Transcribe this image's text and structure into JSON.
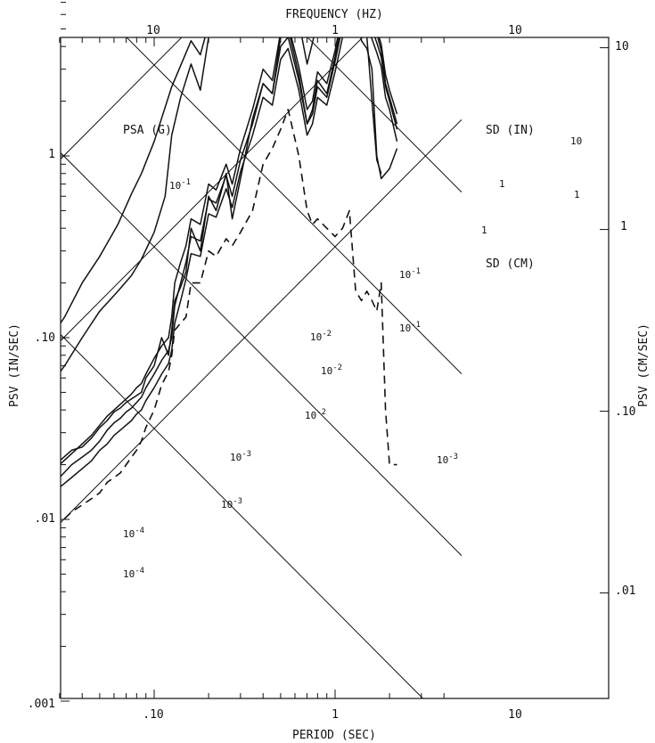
{
  "chart_data": {
    "type": "line",
    "scale": "tripartite log-log",
    "title": "",
    "top_axis": {
      "label": "FREQUENCY (HZ)",
      "ticks": [
        "10",
        "1",
        "10"
      ]
    },
    "xlabel": "PERIOD (SEC)",
    "x_ticks": [
      ".10",
      "1",
      "10"
    ],
    "ylabel_left": "PSV (IN/SEC)",
    "y_ticks_left": [
      ".001",
      ".01",
      ".10",
      "1"
    ],
    "ylabel_right": "PSV (CM/SEC)",
    "y_ticks_right": [
      "10",
      "1",
      ".10",
      ".01"
    ],
    "diagonal_labels": {
      "psa": "PSA (G)",
      "sd_in": "SD (IN)",
      "sd_cm": "SD (CM)",
      "psa_ticks": [
        "10",
        "1",
        "10",
        "10",
        "10",
        "10"
      ],
      "psa_exponents": [
        "-1",
        "",
        "-2",
        "-3",
        "-4",
        "-4"
      ],
      "sd_ticks": [
        "10",
        "1",
        "1",
        "10",
        "10",
        "10",
        "10",
        "10",
        "10"
      ],
      "sd_exponents": [
        "",
        "",
        "",
        "-1",
        "-1",
        "-2",
        "-2",
        "-3",
        "-3"
      ]
    },
    "xlim": [
      0.025,
      4
    ],
    "ylim": [
      0.001,
      10
    ],
    "series": [
      {
        "style": "solid",
        "x": [
          0.025,
          0.032,
          0.04,
          0.05,
          0.063,
          0.075,
          0.085,
          0.1,
          0.125,
          0.16,
          0.18,
          0.2,
          0.25,
          0.3,
          0.35,
          0.4,
          0.5,
          0.55,
          0.63,
          0.7,
          0.75,
          0.8,
          0.9,
          1.0,
          1.1,
          1.2,
          1.3,
          1.4,
          1.5,
          1.6,
          1.7,
          1.8,
          2.0,
          2.2
        ],
        "y": [
          0.09,
          0.13,
          0.2,
          0.28,
          0.42,
          0.62,
          0.8,
          1.2,
          2.4,
          4.3,
          3.6,
          5.3,
          8.0,
          11.5,
          8.0,
          10.5,
          12.5,
          7.0,
          5.5,
          6.5,
          7.0,
          7.5,
          6.5,
          5.5,
          6.2,
          5.0,
          6.3,
          4.3,
          3.9,
          3.0,
          1.0,
          0.75,
          0.85,
          1.1
        ]
      },
      {
        "style": "solid",
        "x": [
          0.025,
          0.032,
          0.04,
          0.05,
          0.063,
          0.075,
          0.085,
          0.1,
          0.115,
          0.125,
          0.14,
          0.16,
          0.18,
          0.2,
          0.25,
          0.3,
          0.35,
          0.4,
          0.45,
          0.5,
          0.55,
          0.63,
          0.7,
          0.75,
          0.8,
          0.9,
          1.0,
          1.1,
          1.2,
          1.3,
          1.4,
          1.5,
          1.6,
          1.7,
          1.8
        ],
        "y": [
          0.05,
          0.07,
          0.1,
          0.14,
          0.18,
          0.22,
          0.27,
          0.38,
          0.6,
          1.3,
          2.1,
          3.2,
          2.3,
          4.5,
          9.0,
          17.0,
          28.0,
          40.0,
          25.0,
          21.0,
          12.0,
          5.5,
          3.2,
          4.2,
          5.5,
          7.0,
          7.8,
          8.0,
          7.5,
          6.5,
          5.5,
          4.5,
          2.0,
          0.95,
          0.8
        ]
      },
      {
        "style": "solid",
        "x": [
          0.025,
          0.03,
          0.035,
          0.04,
          0.045,
          0.05,
          0.055,
          0.06,
          0.065,
          0.07,
          0.075,
          0.08,
          0.085,
          0.09,
          0.1,
          0.11,
          0.12,
          0.125,
          0.13,
          0.14,
          0.15,
          0.16,
          0.18,
          0.2,
          0.22,
          0.25,
          0.27,
          0.3,
          0.35,
          0.4,
          0.45,
          0.5,
          0.55,
          0.63,
          0.7,
          0.75,
          0.8,
          0.9,
          1.0,
          1.1,
          1.2,
          1.3,
          1.4,
          1.5,
          1.6,
          1.7,
          1.8,
          1.9,
          2.0,
          2.2
        ],
        "y": [
          0.017,
          0.021,
          0.024,
          0.025,
          0.028,
          0.032,
          0.035,
          0.039,
          0.041,
          0.044,
          0.046,
          0.048,
          0.05,
          0.06,
          0.07,
          0.1,
          0.08,
          0.11,
          0.16,
          0.19,
          0.23,
          0.4,
          0.3,
          0.6,
          0.5,
          0.8,
          0.45,
          0.75,
          1.6,
          2.5,
          2.2,
          4.5,
          5.0,
          2.8,
          1.5,
          1.8,
          2.6,
          2.2,
          3.5,
          5.8,
          7.0,
          6.8,
          7.2,
          6.5,
          5.5,
          4.7,
          3.8,
          2.5,
          2.1,
          1.5
        ]
      },
      {
        "style": "solid",
        "x": [
          0.025,
          0.03,
          0.035,
          0.04,
          0.045,
          0.05,
          0.055,
          0.06,
          0.065,
          0.07,
          0.075,
          0.08,
          0.085,
          0.09,
          0.1,
          0.11,
          0.12,
          0.125,
          0.13,
          0.14,
          0.15,
          0.16,
          0.18,
          0.2,
          0.22,
          0.25,
          0.27,
          0.3,
          0.35,
          0.4,
          0.45,
          0.5,
          0.55,
          0.63,
          0.7,
          0.75,
          0.8,
          0.9,
          1.0,
          1.1,
          1.2,
          1.3,
          1.4,
          1.5,
          1.6,
          1.7,
          1.8,
          1.9,
          2.0,
          2.2
        ],
        "y": [
          0.017,
          0.02,
          0.023,
          0.026,
          0.029,
          0.033,
          0.037,
          0.04,
          0.043,
          0.046,
          0.049,
          0.053,
          0.056,
          0.063,
          0.077,
          0.09,
          0.1,
          0.13,
          0.2,
          0.26,
          0.32,
          0.45,
          0.42,
          0.7,
          0.65,
          0.9,
          0.7,
          1.1,
          1.8,
          3.0,
          2.6,
          4.8,
          5.3,
          3.1,
          1.8,
          2.0,
          2.9,
          2.5,
          3.8,
          6.2,
          7.6,
          7.5,
          7.9,
          7.0,
          6.0,
          5.0,
          4.1,
          2.8,
          2.3,
          1.7
        ]
      },
      {
        "style": "solid",
        "x": [
          0.025,
          0.03,
          0.035,
          0.04,
          0.045,
          0.05,
          0.055,
          0.06,
          0.065,
          0.07,
          0.075,
          0.08,
          0.085,
          0.09,
          0.1,
          0.11,
          0.12,
          0.125,
          0.13,
          0.14,
          0.15,
          0.16,
          0.18,
          0.2,
          0.22,
          0.25,
          0.27,
          0.3,
          0.35,
          0.4,
          0.45,
          0.5,
          0.55,
          0.63,
          0.7,
          0.75,
          0.8,
          0.9,
          1.0,
          1.1,
          1.2,
          1.3,
          1.4,
          1.5,
          1.6,
          1.7,
          1.8,
          1.9,
          2.0,
          2.2
        ],
        "y": [
          0.014,
          0.017,
          0.02,
          0.022,
          0.024,
          0.027,
          0.031,
          0.034,
          0.036,
          0.039,
          0.041,
          0.044,
          0.047,
          0.053,
          0.063,
          0.075,
          0.085,
          0.1,
          0.15,
          0.2,
          0.26,
          0.36,
          0.34,
          0.58,
          0.55,
          0.78,
          0.6,
          0.95,
          1.5,
          2.5,
          2.2,
          4.0,
          4.5,
          2.6,
          1.5,
          1.7,
          2.4,
          2.1,
          3.3,
          5.2,
          6.4,
          6.3,
          6.6,
          5.9,
          5.0,
          4.2,
          3.5,
          2.4,
          2.0,
          1.4
        ]
      },
      {
        "style": "solid",
        "x": [
          0.025,
          0.03,
          0.035,
          0.04,
          0.045,
          0.05,
          0.055,
          0.06,
          0.065,
          0.07,
          0.075,
          0.08,
          0.085,
          0.09,
          0.1,
          0.11,
          0.12,
          0.125,
          0.13,
          0.14,
          0.15,
          0.16,
          0.18,
          0.2,
          0.22,
          0.25,
          0.27,
          0.3,
          0.35,
          0.4,
          0.45,
          0.5,
          0.55,
          0.63,
          0.7,
          0.75,
          0.8,
          0.9,
          1.0,
          1.1,
          1.2,
          1.3,
          1.4,
          1.5,
          1.6,
          1.7,
          1.8,
          1.9,
          2.0,
          2.2
        ],
        "y": [
          0.012,
          0.015,
          0.017,
          0.019,
          0.021,
          0.024,
          0.026,
          0.029,
          0.031,
          0.033,
          0.035,
          0.038,
          0.04,
          0.045,
          0.053,
          0.063,
          0.072,
          0.085,
          0.12,
          0.16,
          0.21,
          0.29,
          0.28,
          0.48,
          0.46,
          0.66,
          0.52,
          0.82,
          1.3,
          2.1,
          1.9,
          3.4,
          3.9,
          2.3,
          1.3,
          1.5,
          2.1,
          1.9,
          2.9,
          4.5,
          5.6,
          5.5,
          5.8,
          5.2,
          4.4,
          3.7,
          3.1,
          2.1,
          1.8,
          1.2
        ]
      },
      {
        "style": "dashed",
        "x": [
          0.025,
          0.03,
          0.035,
          0.04,
          0.045,
          0.05,
          0.055,
          0.06,
          0.065,
          0.07,
          0.075,
          0.08,
          0.085,
          0.09,
          0.1,
          0.11,
          0.12,
          0.125,
          0.13,
          0.14,
          0.15,
          0.16,
          0.18,
          0.2,
          0.22,
          0.25,
          0.27,
          0.3,
          0.35,
          0.4,
          0.45,
          0.5,
          0.55,
          0.63,
          0.7,
          0.75,
          0.8,
          0.9,
          1.0,
          1.1,
          1.2,
          1.3,
          1.4,
          1.5,
          1.6,
          1.7,
          1.8,
          1.9,
          2.0,
          2.2
        ],
        "y": [
          0.008,
          0.0095,
          0.011,
          0.012,
          0.013,
          0.014,
          0.016,
          0.017,
          0.018,
          0.02,
          0.022,
          0.024,
          0.027,
          0.032,
          0.04,
          0.055,
          0.065,
          0.08,
          0.11,
          0.12,
          0.13,
          0.2,
          0.2,
          0.3,
          0.28,
          0.35,
          0.32,
          0.38,
          0.5,
          0.9,
          1.1,
          1.4,
          1.8,
          1.0,
          0.5,
          0.42,
          0.45,
          0.4,
          0.36,
          0.4,
          0.5,
          0.18,
          0.16,
          0.18,
          0.16,
          0.14,
          0.2,
          0.04,
          0.02,
          0.02
        ]
      }
    ]
  }
}
